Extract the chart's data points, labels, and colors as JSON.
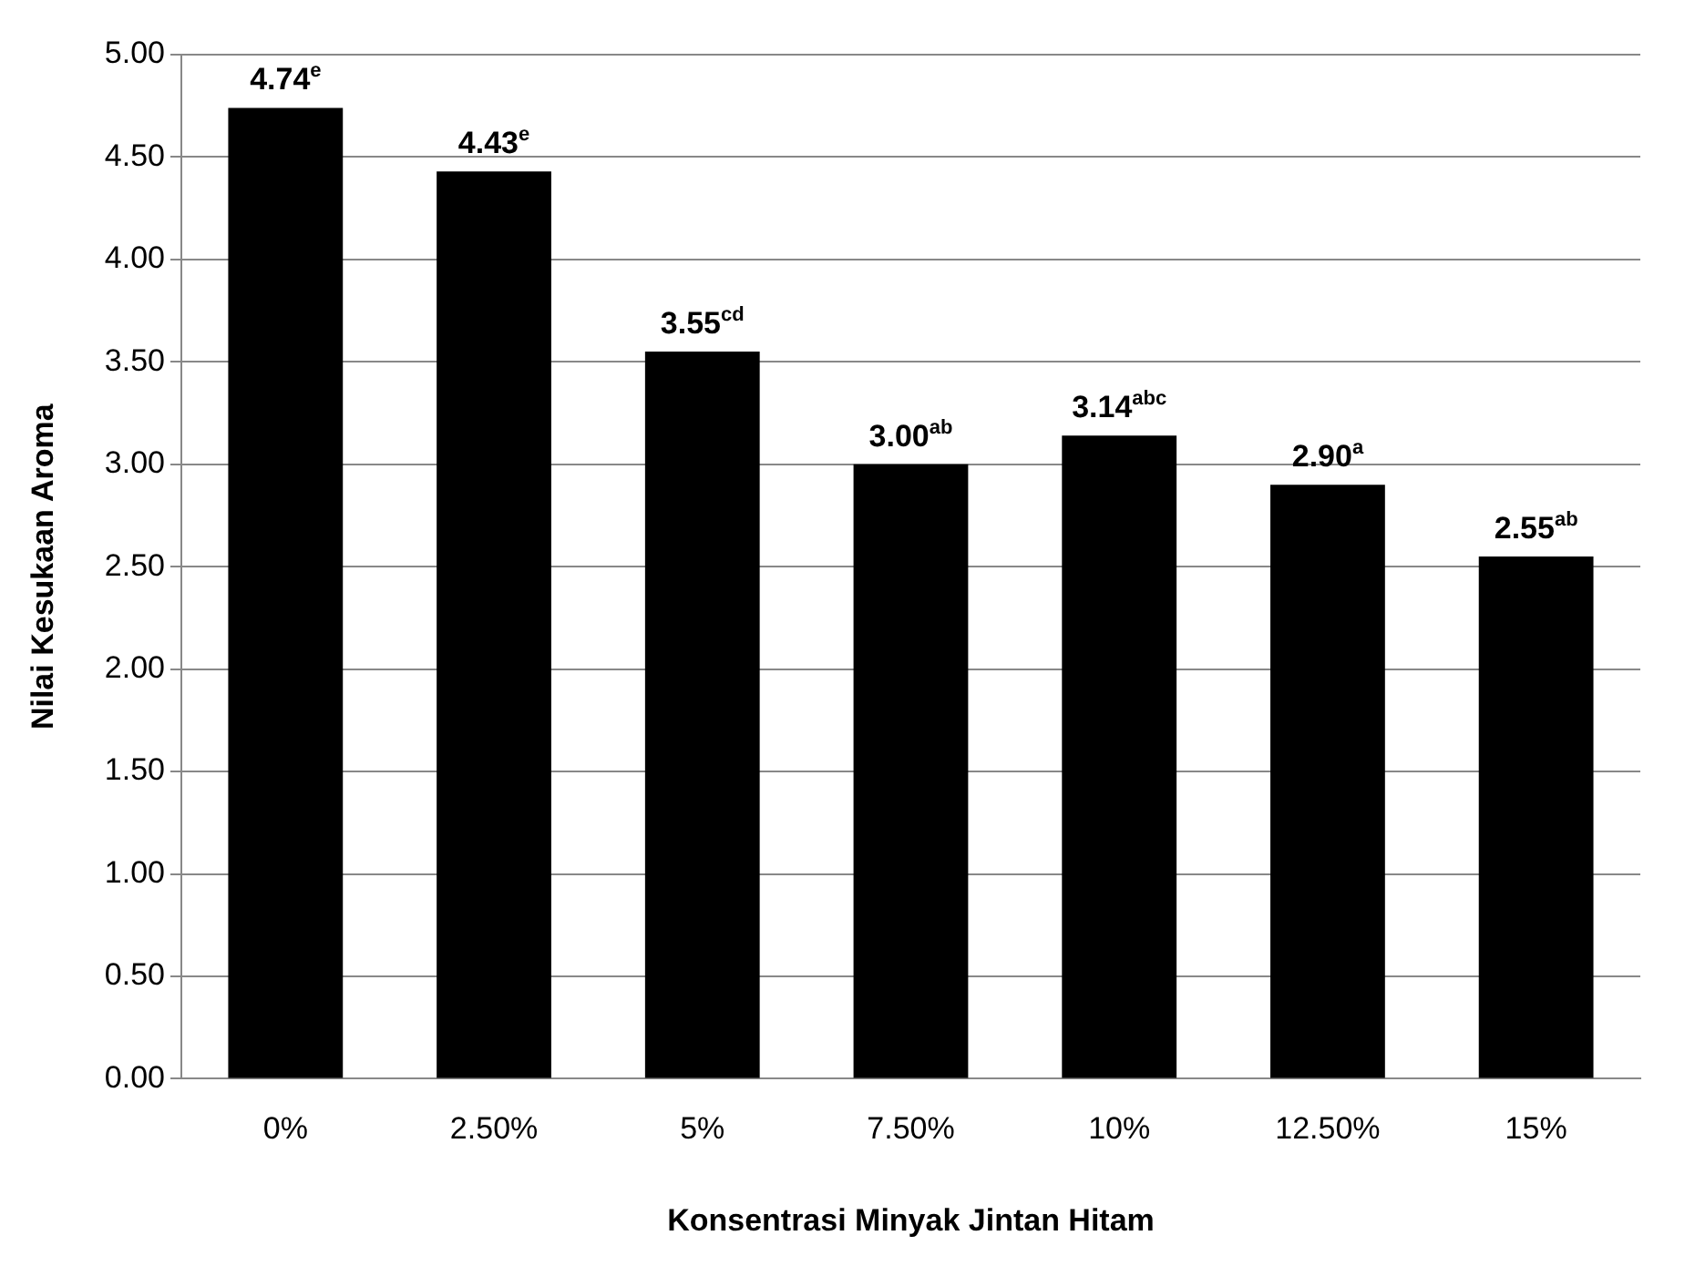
{
  "chart_data": {
    "type": "bar",
    "xlabel": "Konsentrasi Minyak Jintan Hitam",
    "ylabel": "Nilai Kesukaan Aroma",
    "categories": [
      "0%",
      "2.50%",
      "5%",
      "7.50%",
      "10%",
      "12.50%",
      "15%"
    ],
    "values": [
      4.74,
      4.43,
      3.55,
      3.0,
      3.14,
      2.9,
      2.55
    ],
    "value_labels": [
      "4.74$^{e}$",
      "4.43$^{e}$",
      "3.55$^{cd}$",
      "3.00$^{ab}$",
      "3.14$^{abc}$",
      "2.90$^{a}$",
      "2.55$^{ab}$"
    ],
    "color": "#000000",
    "ylim": [
      0,
      5
    ],
    "yticks": [
      {
        "value": 0,
        "label": "0.00"
      },
      {
        "value": 0.5,
        "label": "0.50"
      },
      {
        "value": 1,
        "label": "1.00"
      },
      {
        "value": 1.5,
        "label": "1.50"
      },
      {
        "value": 2,
        "label": "2.00"
      },
      {
        "value": 2.5,
        "label": "2.50"
      },
      {
        "value": 3,
        "label": "3.00"
      },
      {
        "value": 3.5,
        "label": "3.50"
      },
      {
        "value": 4,
        "label": "4.00"
      },
      {
        "value": 4.5,
        "label": "4.50"
      },
      {
        "value": 5,
        "label": "5.00"
      }
    ],
    "grid": "y",
    "legend": false
  }
}
